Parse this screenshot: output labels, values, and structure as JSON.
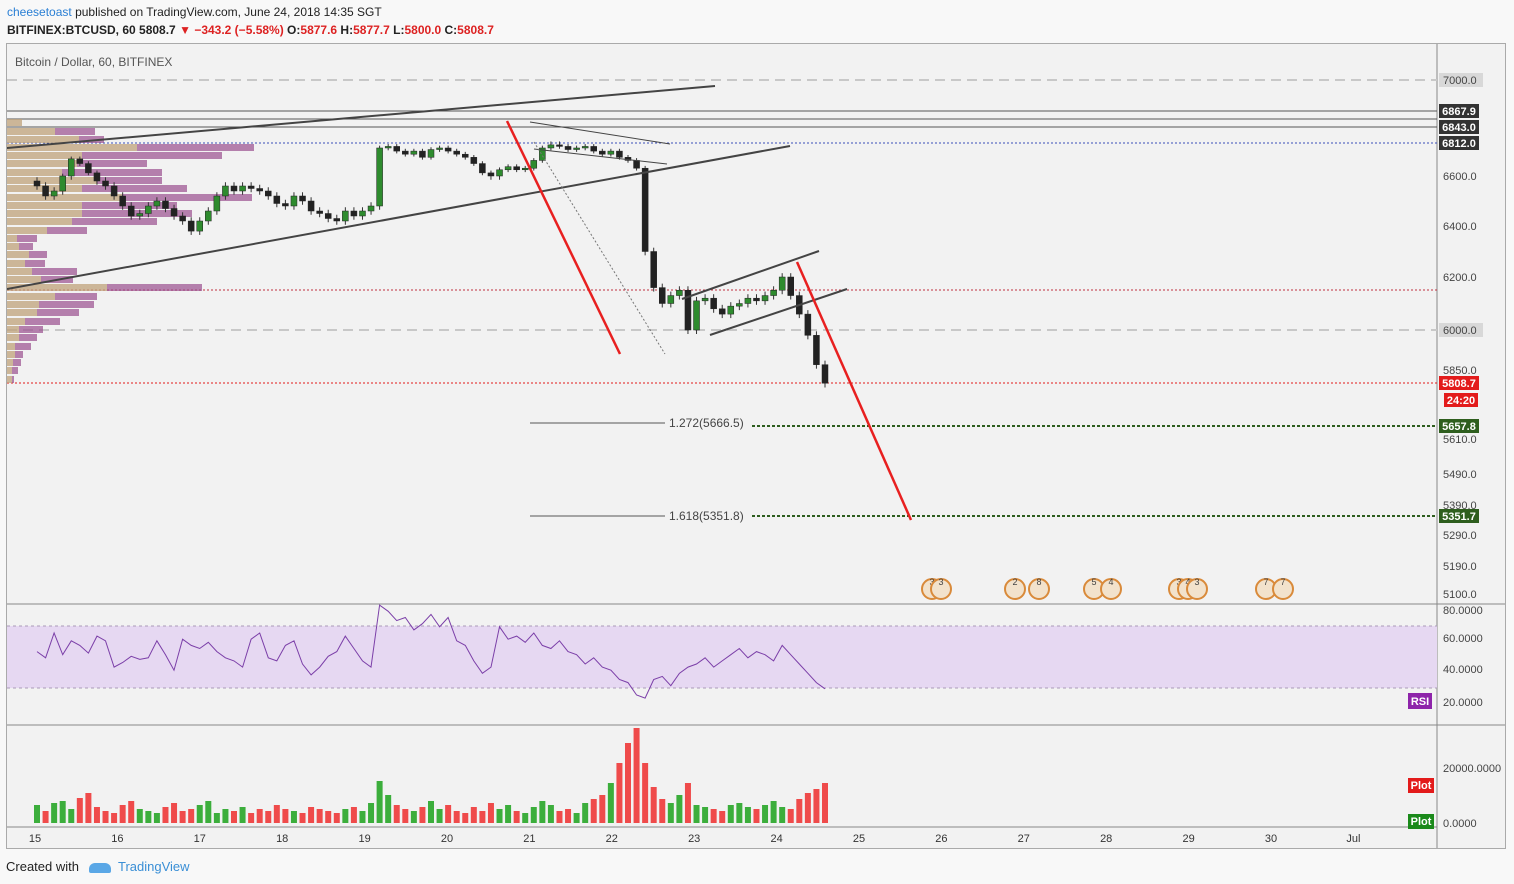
{
  "header": {
    "author": "cheesetoast",
    "published": "published on TradingView.com, June 24, 2018 14:35 SGT",
    "symbol": "BITFINEX:BTCUSD, 60",
    "last": "5808.7",
    "change": "−343.2 (−5.58%)",
    "o": "5877.6",
    "h": "5877.7",
    "l": "5800.0",
    "c": "5808.7"
  },
  "chart_title": "Bitcoin / Dollar, 60, BITFINEX",
  "chart_data": {
    "type": "candlestick",
    "ylim": [
      5080,
      7080
    ],
    "price_ticks": [
      7000,
      6600,
      6400,
      6200,
      6000,
      5850,
      5610,
      5490,
      5390,
      5290,
      5190,
      5100
    ],
    "price_tick_labels": [
      "7000.0",
      "6600.0",
      "6400.0",
      "6200.0",
      "6000.0",
      "5850.0",
      "5610.0",
      "5490.0",
      "5390.0",
      "5290.0",
      "5190.0",
      "5100.0"
    ],
    "x_ticks": [
      "15",
      "16",
      "17",
      "18",
      "19",
      "20",
      "21",
      "22",
      "23",
      "24",
      "25",
      "26",
      "27",
      "28",
      "29",
      "30",
      "Jul"
    ],
    "price_line_labels": [
      {
        "label": "6867.9",
        "color": "#333333"
      },
      {
        "label": "6843.0",
        "color": "#333333"
      },
      {
        "label": "6812.0",
        "color": "#333333"
      },
      {
        "label": "5808.7",
        "color": "#e31b1b"
      },
      {
        "label": "24:20",
        "color": "#e31b1b"
      },
      {
        "label": "5657.8",
        "color": "#2e5e1e"
      },
      {
        "label": "5351.7",
        "color": "#2e5e1e"
      }
    ],
    "fib_labels": [
      "1.272(5666.5)",
      "1.618(5351.8)"
    ],
    "event_badges": [
      "3",
      "3",
      "2",
      "8",
      "5",
      "4",
      "3",
      "4",
      "3",
      "7",
      "7"
    ],
    "closes": [
      6560,
      6520,
      6540,
      6600,
      6710,
      6680,
      6620,
      6580,
      6560,
      6520,
      6480,
      6440,
      6450,
      6480,
      6500,
      6470,
      6440,
      6420,
      6380,
      6420,
      6460,
      6520,
      6560,
      6540,
      6560,
      6550,
      6540,
      6520,
      6490,
      6480,
      6520,
      6500,
      6460,
      6450,
      6430,
      6420,
      6460,
      6440,
      6460,
      6480,
      6780,
      6790,
      6760,
      6740,
      6760,
      6720,
      6770,
      6780,
      6760,
      6740,
      6720,
      6680,
      6620,
      6600,
      6640,
      6660,
      6640,
      6650,
      6700,
      6780,
      6800,
      6790,
      6770,
      6780,
      6790,
      6760,
      6740,
      6760,
      6720,
      6700,
      6650,
      6300,
      6160,
      6100,
      6130,
      6150,
      6000,
      6110,
      6120,
      6080,
      6060,
      6090,
      6100,
      6120,
      6110,
      6130,
      6150,
      6200,
      6130,
      6060,
      5980,
      5870,
      5808
    ],
    "rsi": {
      "upper_band": "80.0000",
      "ticks": [
        "60.0000",
        "40.0000",
        "20.0000"
      ],
      "label": "RSI"
    },
    "volume": {
      "ticks": [
        "20000.0000",
        "0.0000"
      ],
      "labels": [
        "Plot",
        "Plot"
      ]
    }
  },
  "footer": {
    "created": "Created with",
    "brand": "TradingView"
  }
}
